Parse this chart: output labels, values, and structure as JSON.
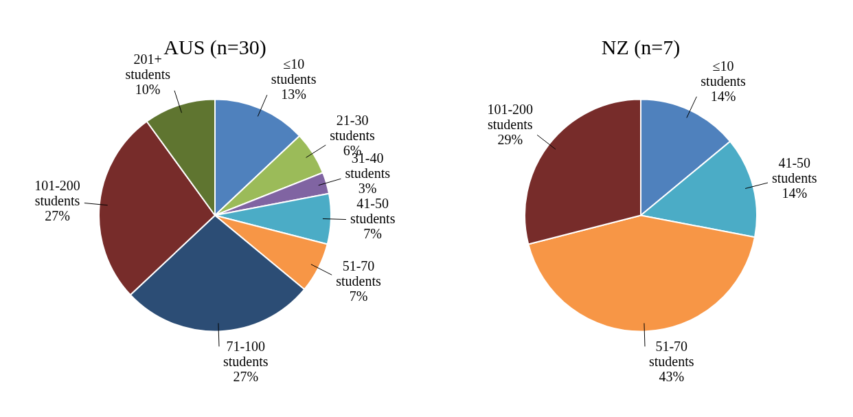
{
  "chart_data": [
    {
      "type": "pie",
      "title": "AUS (n=30)",
      "categories": [
        "≤10 students",
        "21-30 students",
        "31-40 students",
        "41-50 students",
        "51-70 students",
        "71-100 students",
        "101-200 students",
        "201+ students"
      ],
      "values": [
        13,
        6,
        3,
        7,
        7,
        27,
        27,
        10
      ],
      "colors": [
        "#4f81bd",
        "#9bbb59",
        "#8064a2",
        "#4bacc6",
        "#f79646",
        "#2c4d75",
        "#772c2a",
        "#5f7530"
      ],
      "value_labels": [
        "13%",
        "6%",
        "3%",
        "7%",
        "7%",
        "27%",
        "27%",
        "10%"
      ]
    },
    {
      "type": "pie",
      "title": "NZ (n=7)",
      "categories": [
        "≤10 students",
        "41-50 students",
        "51-70 students",
        "101-200 students"
      ],
      "values": [
        14,
        14,
        43,
        29
      ],
      "colors": [
        "#4f81bd",
        "#4bacc6",
        "#f79646",
        "#772c2a"
      ],
      "value_labels": [
        "14%",
        "14%",
        "43%",
        "29%"
      ]
    }
  ]
}
